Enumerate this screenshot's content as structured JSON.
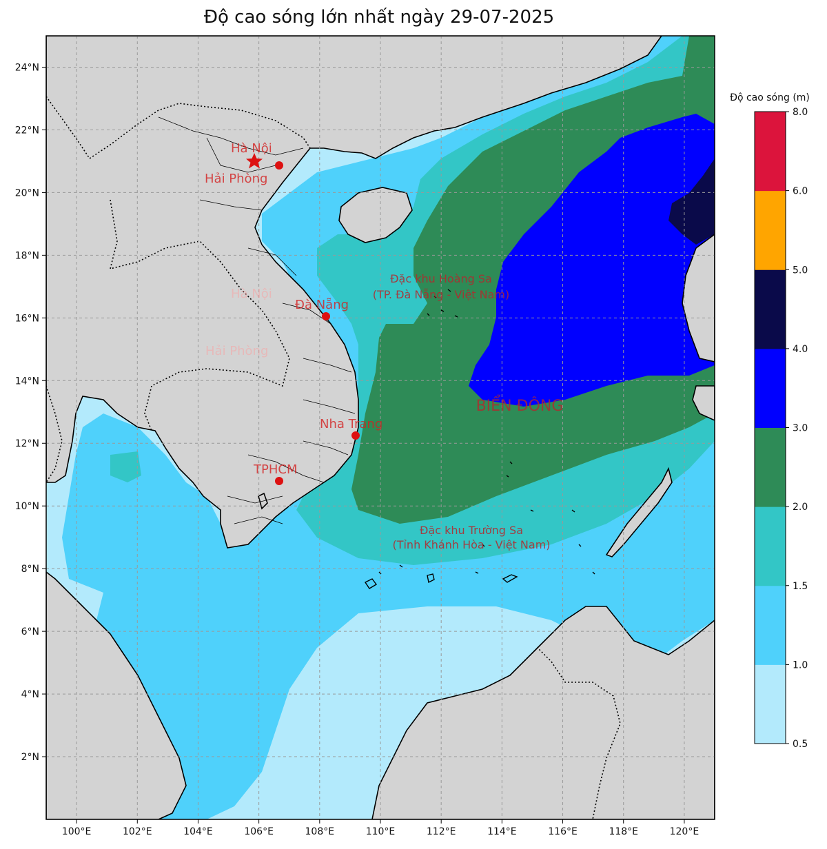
{
  "title": "Độ cao sóng lớn nhất ngày 29-07-2025",
  "colorbar": {
    "title": "Độ cao sóng (m)",
    "ticks": [
      "0.5",
      "1.0",
      "1.5",
      "2.0",
      "3.0",
      "4.0",
      "5.0",
      "6.0",
      "8.0"
    ],
    "colors": [
      "#b3eafc",
      "#4fd1fb",
      "#33c6c6",
      "#2e8b57",
      "#0000ff",
      "#0a0a4a",
      "#ffa500",
      "#dc143c"
    ]
  },
  "axes": {
    "x_ticks": [
      "100°E",
      "102°E",
      "104°E",
      "106°E",
      "108°E",
      "110°E",
      "112°E",
      "114°E",
      "116°E",
      "118°E",
      "120°E"
    ],
    "y_ticks": [
      "24°N",
      "22°N",
      "20°N",
      "18°N",
      "16°N",
      "14°N",
      "12°N",
      "10°N",
      "8°N",
      "6°N",
      "4°N",
      "2°N"
    ],
    "lon_range": [
      99,
      121
    ],
    "lat_range": [
      0,
      25
    ]
  },
  "cities": [
    {
      "name": "Hà Nội",
      "marker": "star-icon",
      "lon": 105.85,
      "lat": 21.03
    },
    {
      "name": "Hải Phòng",
      "marker": "dot-icon",
      "lon": 106.68,
      "lat": 20.86
    },
    {
      "name": "Đà Nẵng",
      "marker": "dot-icon",
      "lon": 108.22,
      "lat": 16.05
    },
    {
      "name": "Nha Trang",
      "marker": "dot-icon",
      "lon": 109.19,
      "lat": 12.24
    },
    {
      "name": "TPHCM",
      "marker": "dot-icon",
      "lon": 106.7,
      "lat": 10.82
    }
  ],
  "regions": [
    {
      "line1": "Đặc khu Hoàng Sa",
      "line2": "(TP. Đà Nẵng - Việt Nam)"
    },
    {
      "line1": "Đặc khu Trường Sa",
      "line2": "(Tỉnh Khánh Hòa - Việt Nam)"
    }
  ],
  "ghost_labels": [
    "Hà Nội",
    "Hải Phòng"
  ],
  "sea_label": "BIỂN ĐÔNG",
  "colors": {
    "land": "#d3d3d3",
    "coast": "#000000",
    "grid": "#999999",
    "marker": "#dd1111"
  }
}
